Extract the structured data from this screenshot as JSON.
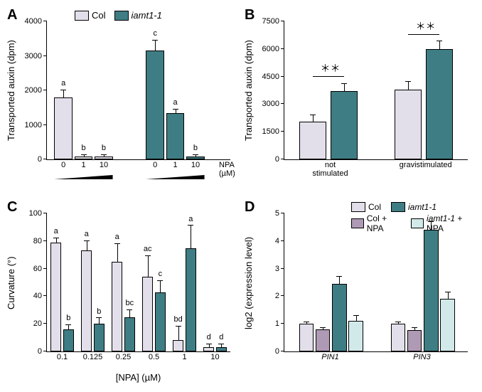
{
  "colors": {
    "col": "#e3dfea",
    "iamt": "#3f7d84",
    "col_npa": "#af9ab5",
    "iamt_npa": "#d2e9ea",
    "axis": "#000000",
    "bg": "#ffffff"
  },
  "panelA": {
    "label": "A",
    "ylabel": "Transported auxin (dpm)",
    "ylim": [
      0,
      4000
    ],
    "ytick_step": 1000,
    "legend": [
      {
        "label": "Col",
        "colorKey": "col",
        "italic": false
      },
      {
        "label": "iamt1-1",
        "colorKey": "iamt",
        "italic": true
      }
    ],
    "groups": [
      {
        "bars": [
          {
            "value": 1800,
            "err": 200,
            "letter": "a",
            "colorKey": "col"
          },
          {
            "value": 90,
            "err": 40,
            "letter": "b",
            "colorKey": "col"
          },
          {
            "value": 80,
            "err": 40,
            "letter": "b",
            "colorKey": "col"
          }
        ],
        "xticks": [
          "0",
          "1",
          "10"
        ]
      },
      {
        "bars": [
          {
            "value": 3150,
            "err": 300,
            "letter": "c",
            "colorKey": "iamt"
          },
          {
            "value": 1350,
            "err": 100,
            "letter": "a",
            "colorKey": "iamt"
          },
          {
            "value": 90,
            "err": 40,
            "letter": "b",
            "colorKey": "iamt"
          }
        ],
        "xticks": [
          "0",
          "1",
          "10"
        ]
      }
    ],
    "x_right_label": "NPA\n(µM)"
  },
  "panelB": {
    "label": "B",
    "ylabel": "Transported auxin (dpm)",
    "ylim": [
      0,
      7500
    ],
    "ytick_step": 1500,
    "sig": "＊＊",
    "groups": [
      {
        "label": "not\nstimulated",
        "bars": [
          {
            "value": 2050,
            "err": 350,
            "colorKey": "col"
          },
          {
            "value": 3700,
            "err": 400,
            "colorKey": "iamt"
          }
        ]
      },
      {
        "label": "gravistimulated",
        "bars": [
          {
            "value": 3800,
            "err": 400,
            "colorKey": "col"
          },
          {
            "value": 6000,
            "err": 400,
            "colorKey": "iamt"
          }
        ]
      }
    ]
  },
  "panelC": {
    "label": "C",
    "ylabel": "Curvature (°)",
    "xlabel": "[NPA] (µM)",
    "ylim": [
      0,
      100
    ],
    "ytick_step": 20,
    "categories": [
      "0.1",
      "0.125",
      "0.25",
      "0.5",
      "1",
      "10"
    ],
    "series": [
      {
        "colorKey": "col",
        "values": [
          79,
          73,
          65,
          54,
          8,
          3
        ],
        "errs": [
          3,
          7,
          13,
          15,
          10,
          2
        ],
        "letters": [
          "a",
          "a",
          "a",
          "ac",
          "bd",
          "d"
        ]
      },
      {
        "colorKey": "iamt",
        "values": [
          16,
          20,
          25,
          43,
          75,
          3
        ],
        "errs": [
          3,
          4,
          5,
          8,
          16,
          2
        ],
        "letters": [
          "b",
          "b",
          "bc",
          "c",
          "a",
          "d"
        ]
      }
    ]
  },
  "panelD": {
    "label": "D",
    "ylabel": "log2 (expression level)",
    "ylim": [
      0,
      5
    ],
    "ytick_step": 1,
    "categories": [
      "PIN1",
      "PIN3"
    ],
    "legend": [
      {
        "label": "Col",
        "colorKey": "col",
        "italic": false
      },
      {
        "label": "Col + NPA",
        "colorKey": "col_npa",
        "italic": false
      },
      {
        "label": "iamt1-1",
        "colorKey": "iamt",
        "italic": true
      },
      {
        "label": "iamt1-1 + NPA",
        "colorKey": "iamt_npa",
        "italicPrefix": true
      }
    ],
    "series": [
      {
        "colorKey": "col",
        "values": [
          1.0,
          1.0
        ],
        "errs": [
          0.05,
          0.05
        ]
      },
      {
        "colorKey": "col_npa",
        "values": [
          0.8,
          0.78
        ],
        "errs": [
          0.06,
          0.06
        ]
      },
      {
        "colorKey": "iamt",
        "values": [
          2.45,
          4.4
        ],
        "errs": [
          0.25,
          0.3
        ]
      },
      {
        "colorKey": "iamt_npa",
        "values": [
          1.1,
          1.9
        ],
        "errs": [
          0.2,
          0.25
        ]
      }
    ]
  }
}
